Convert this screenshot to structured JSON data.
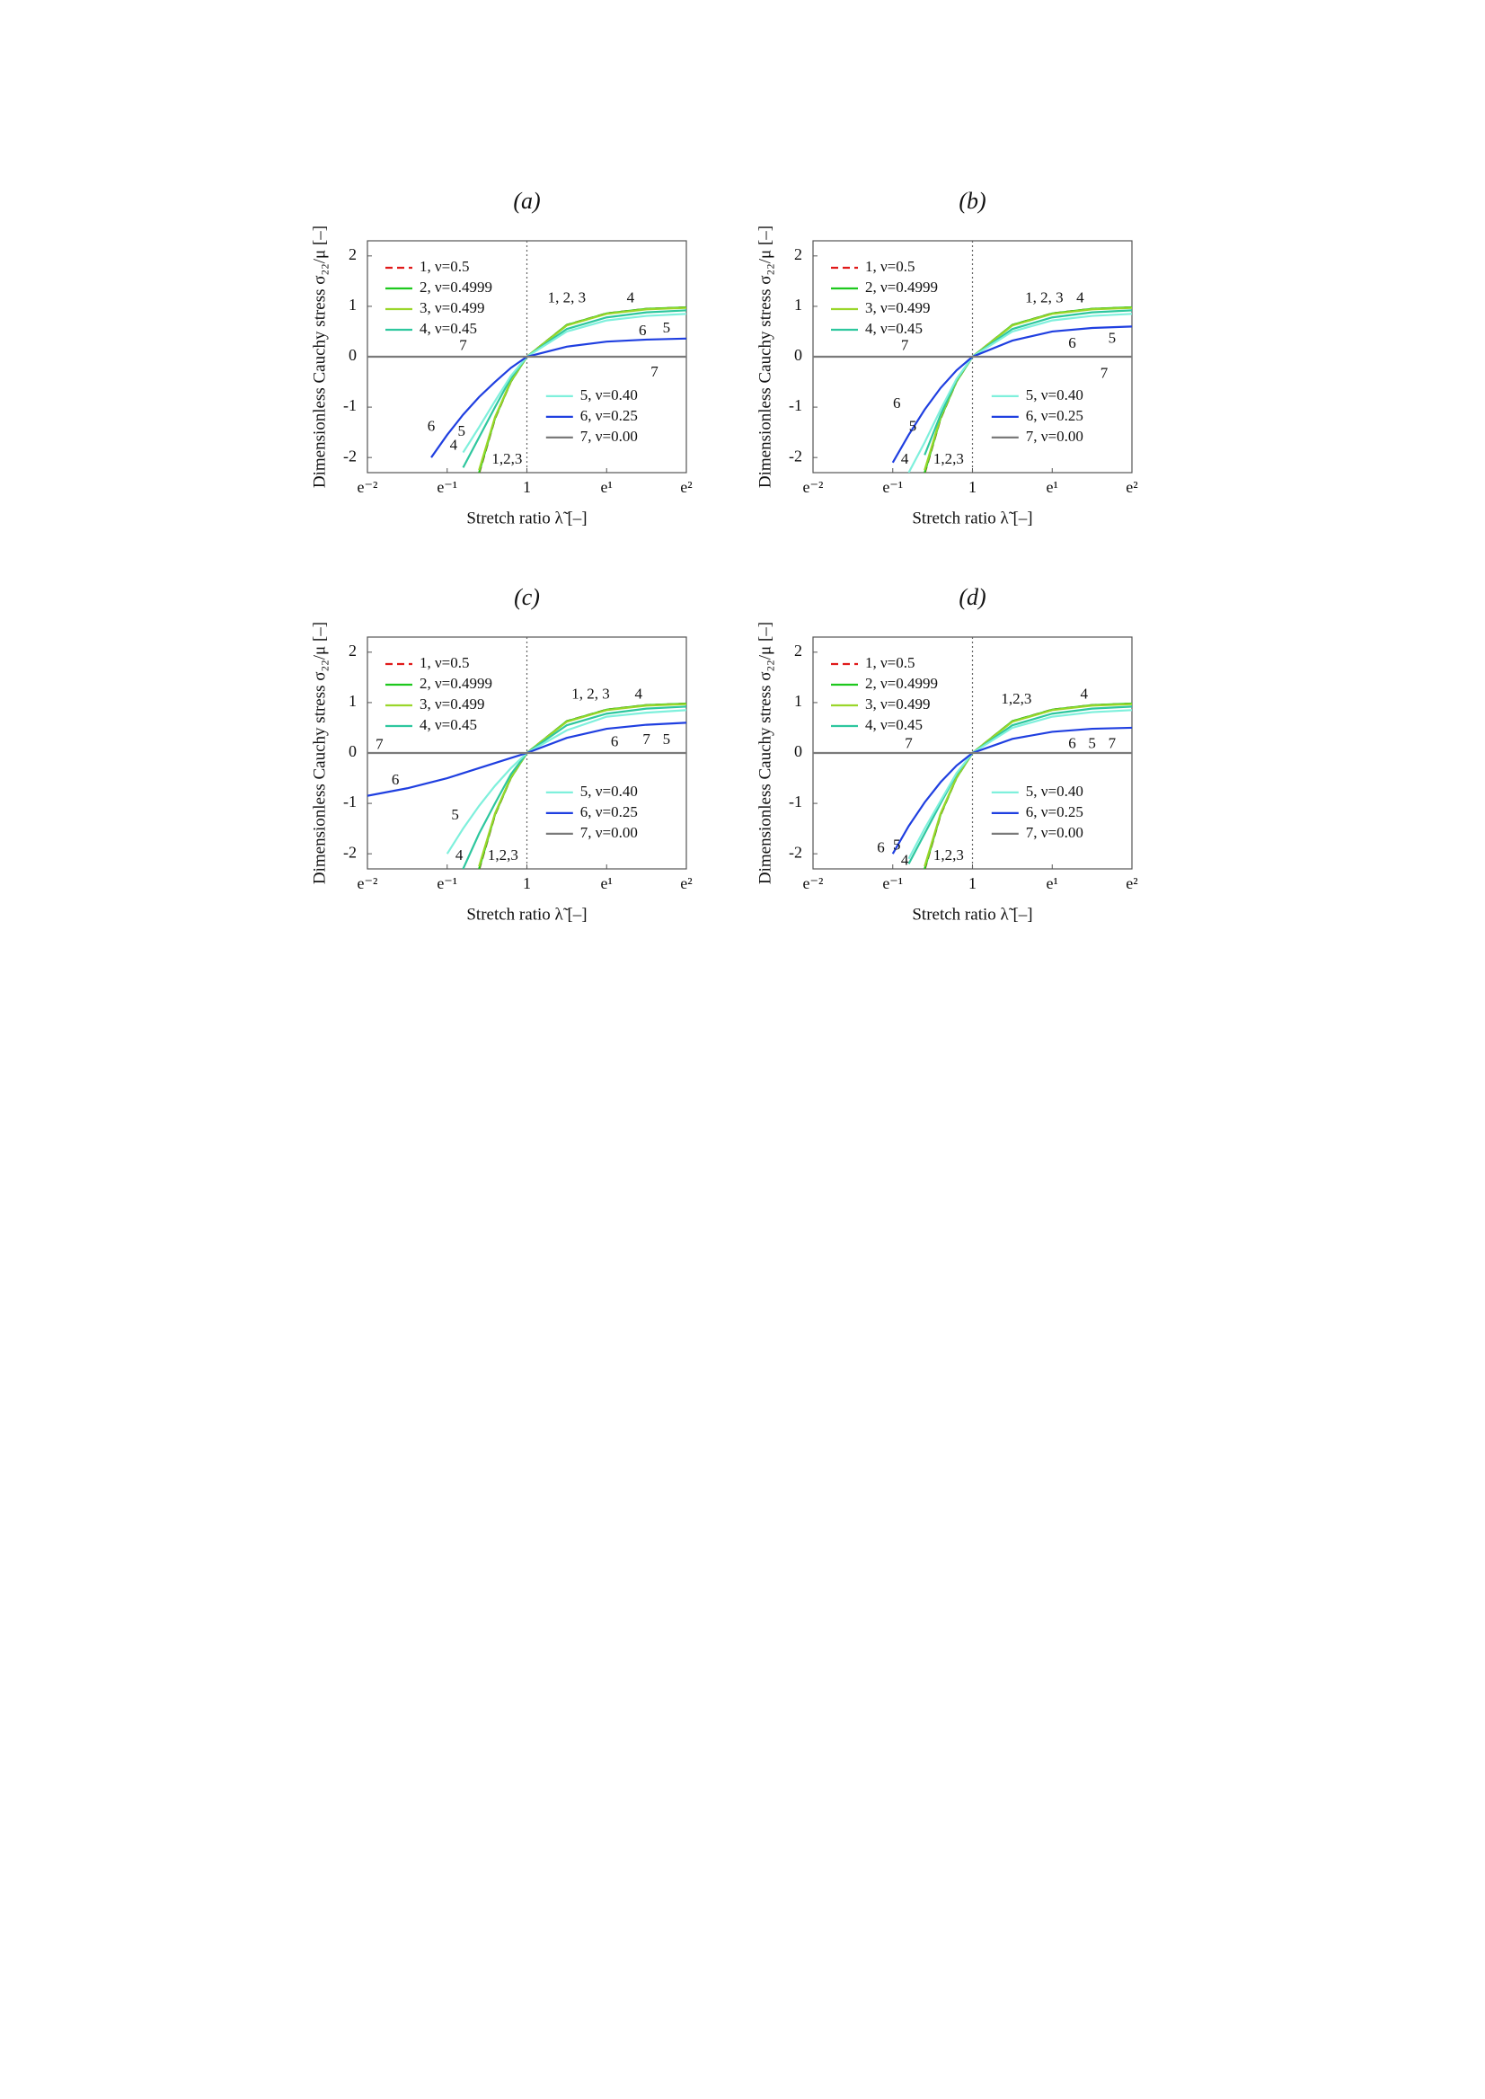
{
  "chart_data": [
    {
      "type": "line",
      "title": "(a)",
      "x_label": "Stretch ratio λ̃ [–]",
      "y_label": "Dimensionless Cauchy stress σ₂₂/μ [–]",
      "xscale": "log",
      "x": [
        0.1353,
        0.2231,
        0.3012,
        0.3679,
        0.4493,
        0.5488,
        0.6703,
        0.8187,
        1,
        1.6487,
        2.7183,
        4.4817,
        7.3891
      ],
      "xlim": [
        0.1353,
        7.3891
      ],
      "ylim": [
        -2.3,
        2.3
      ],
      "xticks": [
        {
          "value": 0.1353,
          "label": "e⁻²"
        },
        {
          "value": 0.3679,
          "label": "e⁻¹"
        },
        1,
        {
          "value": 2.7183,
          "label": "e¹"
        },
        {
          "value": 7.3891,
          "label": "e²"
        }
      ],
      "yticks": [
        -2,
        -1,
        0,
        1,
        2
      ],
      "vline": 1,
      "series": [
        {
          "name": "1, ν=0.5",
          "color": "#e01a1a",
          "dash": true,
          "values": [
            null,
            null,
            null,
            null,
            null,
            -2.32,
            -1.23,
            -0.49,
            0,
            0.63,
            0.86,
            0.95,
            0.98
          ]
        },
        {
          "name": "2, ν=0.4999",
          "color": "#1ec81e",
          "values": [
            null,
            null,
            null,
            null,
            null,
            -2.3,
            -1.22,
            -0.49,
            0,
            0.63,
            0.86,
            0.95,
            0.98
          ]
        },
        {
          "name": "3, ν=0.499",
          "color": "#9ad62a",
          "values": [
            null,
            null,
            null,
            null,
            null,
            -2.25,
            -1.2,
            -0.48,
            0,
            0.62,
            0.85,
            0.94,
            0.97
          ]
        },
        {
          "name": "4, ν=0.45",
          "color": "#2ec79e",
          "values": [
            null,
            null,
            null,
            null,
            -2.2,
            -1.6,
            -1.0,
            -0.42,
            0,
            0.55,
            0.78,
            0.88,
            0.92
          ]
        },
        {
          "name": "5, ν=0.40",
          "color": "#7ff0dc",
          "values": [
            null,
            null,
            null,
            null,
            -1.9,
            -1.4,
            -0.88,
            -0.38,
            0,
            0.5,
            0.72,
            0.81,
            0.85
          ]
        },
        {
          "name": "6, ν=0.25",
          "color": "#1f3fe0",
          "values": [
            null,
            null,
            -2.0,
            -1.55,
            -1.15,
            -0.8,
            -0.5,
            -0.22,
            0,
            0.2,
            0.3,
            0.34,
            0.36
          ]
        },
        {
          "name": "7, ν=0.00",
          "color": "#7a7a7a",
          "values": [
            0,
            0,
            0,
            0,
            0,
            0,
            0,
            0,
            0,
            0,
            0,
            0,
            0
          ]
        }
      ],
      "annotations": [
        "1, 2, 3",
        "4",
        "6",
        "5",
        "7",
        "7",
        "6",
        "5",
        "4",
        "1,2,3"
      ]
    },
    {
      "type": "line",
      "title": "(b)",
      "x_label": "Stretch ratio λ̃ [–]",
      "y_label": "Dimensionless Cauchy stress σ₂₂/μ [–]",
      "xscale": "log",
      "x": [
        0.1353,
        0.2231,
        0.3012,
        0.3679,
        0.4493,
        0.5488,
        0.6703,
        0.8187,
        1,
        1.6487,
        2.7183,
        4.4817,
        7.3891
      ],
      "xlim": [
        0.1353,
        7.3891
      ],
      "ylim": [
        -2.3,
        2.3
      ],
      "xticks": [
        {
          "value": 0.1353,
          "label": "e⁻²"
        },
        {
          "value": 0.3679,
          "label": "e⁻¹"
        },
        1,
        {
          "value": 2.7183,
          "label": "e¹"
        },
        {
          "value": 7.3891,
          "label": "e²"
        }
      ],
      "yticks": [
        -2,
        -1,
        0,
        1,
        2
      ],
      "vline": 1,
      "series": [
        {
          "name": "1, ν=0.5",
          "color": "#e01a1a",
          "dash": true,
          "values": [
            null,
            null,
            null,
            null,
            null,
            -2.32,
            -1.23,
            -0.49,
            0,
            0.63,
            0.86,
            0.95,
            0.98
          ]
        },
        {
          "name": "2, ν=0.4999",
          "color": "#1ec81e",
          "values": [
            null,
            null,
            null,
            null,
            null,
            -2.3,
            -1.22,
            -0.49,
            0,
            0.63,
            0.86,
            0.95,
            0.98
          ]
        },
        {
          "name": "3, ν=0.499",
          "color": "#9ad62a",
          "values": [
            null,
            null,
            null,
            null,
            null,
            -2.25,
            -1.2,
            -0.48,
            0,
            0.62,
            0.85,
            0.94,
            0.97
          ]
        },
        {
          "name": "4, ν=0.45",
          "color": "#2ec79e",
          "values": [
            null,
            null,
            null,
            null,
            null,
            -1.95,
            -1.15,
            -0.46,
            0,
            0.55,
            0.78,
            0.88,
            0.92
          ]
        },
        {
          "name": "5, ν=0.40",
          "color": "#7ff0dc",
          "values": [
            null,
            null,
            null,
            null,
            -2.3,
            -1.7,
            -1.05,
            -0.44,
            0,
            0.5,
            0.72,
            0.81,
            0.85
          ]
        },
        {
          "name": "6, ν=0.25",
          "color": "#1f3fe0",
          "values": [
            null,
            null,
            null,
            -2.1,
            -1.55,
            -1.05,
            -0.62,
            -0.27,
            0,
            0.32,
            0.5,
            0.57,
            0.6
          ]
        },
        {
          "name": "7, ν=0.00",
          "color": "#7a7a7a",
          "values": [
            0,
            0,
            0,
            0,
            0,
            0,
            0,
            0,
            0,
            0,
            0,
            0,
            0
          ]
        }
      ],
      "annotations": [
        "1, 2, 3",
        "4",
        "5",
        "6",
        "7",
        "7",
        "6",
        "5",
        "4",
        "1,2,3"
      ]
    },
    {
      "type": "line",
      "title": "(c)",
      "x_label": "Stretch ratio λ̃ [–]",
      "y_label": "Dimensionless Cauchy stress σ₂₂/μ [–]",
      "xscale": "log",
      "x": [
        0.1353,
        0.2231,
        0.3012,
        0.3679,
        0.4493,
        0.5488,
        0.6703,
        0.8187,
        1,
        1.6487,
        2.7183,
        4.4817,
        7.3891
      ],
      "xlim": [
        0.1353,
        7.3891
      ],
      "ylim": [
        -2.3,
        2.3
      ],
      "xticks": [
        {
          "value": 0.1353,
          "label": "e⁻²"
        },
        {
          "value": 0.3679,
          "label": "e⁻¹"
        },
        1,
        {
          "value": 2.7183,
          "label": "e¹"
        },
        {
          "value": 7.3891,
          "label": "e²"
        }
      ],
      "yticks": [
        -2,
        -1,
        0,
        1,
        2
      ],
      "vline": 1,
      "series": [
        {
          "name": "1, ν=0.5",
          "color": "#e01a1a",
          "dash": true,
          "values": [
            null,
            null,
            null,
            null,
            null,
            -2.32,
            -1.23,
            -0.49,
            0,
            0.63,
            0.86,
            0.95,
            0.98
          ]
        },
        {
          "name": "2, ν=0.4999",
          "color": "#1ec81e",
          "values": [
            null,
            null,
            null,
            null,
            null,
            -2.3,
            -1.22,
            -0.49,
            0,
            0.63,
            0.86,
            0.95,
            0.98
          ]
        },
        {
          "name": "3, ν=0.499",
          "color": "#9ad62a",
          "values": [
            null,
            null,
            null,
            null,
            null,
            -2.25,
            -1.2,
            -0.48,
            0,
            0.62,
            0.85,
            0.94,
            0.97
          ]
        },
        {
          "name": "4, ν=0.45",
          "color": "#2ec79e",
          "values": [
            null,
            null,
            null,
            null,
            -2.3,
            -1.6,
            -1.0,
            -0.42,
            0,
            0.55,
            0.78,
            0.88,
            0.92
          ]
        },
        {
          "name": "5, ν=0.40",
          "color": "#7ff0dc",
          "values": [
            null,
            null,
            null,
            -2.0,
            -1.5,
            -1.05,
            -0.65,
            -0.3,
            0,
            0.45,
            0.72,
            0.8,
            0.85
          ]
        },
        {
          "name": "6, ν=0.25",
          "color": "#1f3fe0",
          "values": [
            -0.85,
            -0.7,
            -0.58,
            -0.5,
            -0.4,
            -0.3,
            -0.2,
            -0.1,
            0,
            0.3,
            0.48,
            0.56,
            0.6
          ]
        },
        {
          "name": "7, ν=0.00",
          "color": "#7a7a7a",
          "values": [
            0,
            0,
            0,
            0,
            0,
            0,
            0,
            0,
            0,
            0,
            0,
            0,
            0
          ]
        }
      ],
      "annotations": [
        "1, 2, 3",
        "4",
        "6",
        "7",
        "5",
        "7",
        "6",
        "5",
        "4",
        "1,2,3"
      ]
    },
    {
      "type": "line",
      "title": "(d)",
      "x_label": "Stretch ratio λ̃ [–]",
      "y_label": "Dimensionless Cauchy stress σ₂₂/μ [–]",
      "xscale": "log",
      "x": [
        0.1353,
        0.2231,
        0.3012,
        0.3679,
        0.4493,
        0.5488,
        0.6703,
        0.8187,
        1,
        1.6487,
        2.7183,
        4.4817,
        7.3891
      ],
      "xlim": [
        0.1353,
        7.3891
      ],
      "ylim": [
        -2.3,
        2.3
      ],
      "xticks": [
        {
          "value": 0.1353,
          "label": "e⁻²"
        },
        {
          "value": 0.3679,
          "label": "e⁻¹"
        },
        1,
        {
          "value": 2.7183,
          "label": "e¹"
        },
        {
          "value": 7.3891,
          "label": "e²"
        }
      ],
      "yticks": [
        -2,
        -1,
        0,
        1,
        2
      ],
      "vline": 1,
      "series": [
        {
          "name": "1, ν=0.5",
          "color": "#e01a1a",
          "dash": true,
          "values": [
            null,
            null,
            null,
            null,
            null,
            -2.32,
            -1.23,
            -0.49,
            0,
            0.63,
            0.86,
            0.95,
            0.98
          ]
        },
        {
          "name": "2, ν=0.4999",
          "color": "#1ec81e",
          "values": [
            null,
            null,
            null,
            null,
            null,
            -2.3,
            -1.22,
            -0.49,
            0,
            0.63,
            0.86,
            0.95,
            0.98
          ]
        },
        {
          "name": "3, ν=0.499",
          "color": "#9ad62a",
          "values": [
            null,
            null,
            null,
            null,
            null,
            -2.25,
            -1.2,
            -0.48,
            0,
            0.62,
            0.85,
            0.94,
            0.97
          ]
        },
        {
          "name": "4, ν=0.45",
          "color": "#2ec79e",
          "values": [
            null,
            null,
            null,
            null,
            -2.2,
            -1.6,
            -1.0,
            -0.42,
            0,
            0.55,
            0.78,
            0.88,
            0.92
          ]
        },
        {
          "name": "5, ν=0.40",
          "color": "#7ff0dc",
          "values": [
            null,
            null,
            null,
            null,
            -2.1,
            -1.5,
            -0.95,
            -0.4,
            0,
            0.5,
            0.72,
            0.81,
            0.85
          ]
        },
        {
          "name": "6, ν=0.25",
          "color": "#1f3fe0",
          "values": [
            null,
            null,
            null,
            -2.0,
            -1.45,
            -0.98,
            -0.58,
            -0.25,
            0,
            0.28,
            0.42,
            0.48,
            0.5
          ]
        },
        {
          "name": "7, ν=0.00",
          "color": "#7a7a7a",
          "values": [
            0,
            0,
            0,
            0,
            0,
            0,
            0,
            0,
            0,
            0,
            0,
            0,
            0
          ]
        }
      ],
      "annotations": [
        "1,2,3",
        "4",
        "6",
        "5",
        "7",
        "7",
        "6",
        "5",
        "4",
        "1,2,3"
      ]
    }
  ]
}
